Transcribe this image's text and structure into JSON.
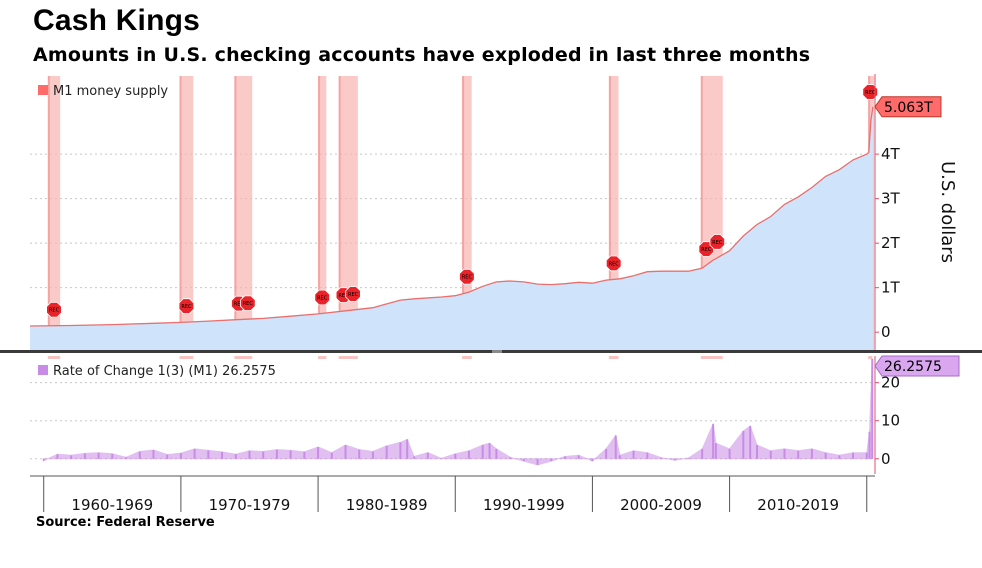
{
  "header": {
    "title": "Cash Kings",
    "subtitle": "Amounts in U.S. checking accounts have exploded in last three months",
    "source": "Source: Federal Reserve"
  },
  "colors": {
    "area_fill": "#cfe3fb",
    "m1_line": "#e8706e",
    "recession_band": "#f8b4b2",
    "recession_marker": "#e8232a",
    "roc_series": "#c98ce6",
    "callout_top": "#ff6b6b",
    "callout_bottom": "#d9a7f0",
    "panel_divider": "#3a3a3a",
    "right_axis": "#e0506a"
  },
  "chart_data": [
    {
      "type": "area",
      "legend": "M1 money supply",
      "ylabel": "U.S. dollars",
      "yticks": [
        "0",
        "1T",
        "2T",
        "3T",
        "4T"
      ],
      "ytick_values": [
        0,
        1,
        2,
        3,
        4
      ],
      "ylim": [
        -0.4,
        5.8
      ],
      "xlim": [
        1959.0,
        2020.6
      ],
      "last_value_label": "5.063T",
      "last_value": 5.063,
      "series": [
        {
          "name": "M1 money supply",
          "x": [
            1959.0,
            1962,
            1965,
            1968,
            1970,
            1972,
            1974,
            1976,
            1978,
            1980,
            1982,
            1984,
            1986,
            1987,
            1989,
            1990,
            1991,
            1992,
            1993,
            1994,
            1995,
            1996,
            1997,
            1998,
            1999,
            2000,
            2001,
            2002,
            2003,
            2004,
            2005,
            2006,
            2007,
            2008,
            2008.8,
            2009,
            2010,
            2011,
            2012,
            2013,
            2014,
            2015,
            2016,
            2017,
            2018,
            2019,
            2020.0,
            2020.15,
            2020.3,
            2020.45
          ],
          "values": [
            0.14,
            0.15,
            0.17,
            0.2,
            0.22,
            0.25,
            0.28,
            0.31,
            0.36,
            0.41,
            0.48,
            0.55,
            0.72,
            0.75,
            0.79,
            0.82,
            0.9,
            1.03,
            1.13,
            1.15,
            1.13,
            1.08,
            1.07,
            1.09,
            1.12,
            1.1,
            1.17,
            1.2,
            1.27,
            1.36,
            1.37,
            1.37,
            1.37,
            1.44,
            1.62,
            1.65,
            1.83,
            2.16,
            2.42,
            2.6,
            2.87,
            3.04,
            3.25,
            3.5,
            3.65,
            3.87,
            4.0,
            4.04,
            4.76,
            5.063
          ]
        }
      ],
      "recessions": [
        {
          "start": 1960.3,
          "end": 1961.2
        },
        {
          "start": 1969.9,
          "end": 1970.9
        },
        {
          "start": 1973.9,
          "end": 1975.2
        },
        {
          "start": 1980.0,
          "end": 1980.6
        },
        {
          "start": 1981.5,
          "end": 1982.9
        },
        {
          "start": 1990.5,
          "end": 1991.2
        },
        {
          "start": 2001.2,
          "end": 2001.9
        },
        {
          "start": 2007.9,
          "end": 2009.5
        },
        {
          "start": 2020.1,
          "end": 2020.4
        }
      ],
      "marker_text": "REC"
    },
    {
      "type": "bar",
      "legend": "Rate of Change 1(3) (M1) 26.2575",
      "yticks": [
        "0",
        "10",
        "20"
      ],
      "ytick_values": [
        0,
        10,
        20
      ],
      "ylim": [
        -4,
        27
      ],
      "last_value_label": "26.2575",
      "last_value": 26.2575,
      "series": [
        {
          "name": "Rate of Change 1(3) (M1)",
          "x": [
            1960,
            1961,
            1962,
            1963,
            1964,
            1965,
            1966,
            1967,
            1968,
            1969,
            1970,
            1971,
            1972,
            1973,
            1974,
            1975,
            1976,
            1977,
            1978,
            1979,
            1980,
            1981,
            1982,
            1983,
            1984,
            1985,
            1986,
            1986.5,
            1987,
            1988,
            1989,
            1990,
            1991,
            1992,
            1992.5,
            1993,
            1994,
            1995,
            1996,
            1997,
            1998,
            1999,
            2000,
            2001,
            2001.7,
            2002,
            2003,
            2004,
            2005,
            2006,
            2007,
            2008,
            2008.8,
            2009,
            2010,
            2011,
            2011.5,
            2012,
            2013,
            2014,
            2015,
            2016,
            2017,
            2018,
            2019,
            2020.0,
            2020.2,
            2020.4
          ],
          "values": [
            -0.5,
            1.2,
            0.9,
            1.4,
            1.6,
            1.3,
            0.4,
            1.9,
            2.3,
            1.1,
            1.5,
            2.6,
            2.2,
            1.8,
            1.2,
            2.1,
            1.9,
            2.4,
            2.2,
            1.8,
            3.1,
            1.6,
            3.6,
            2.4,
            1.9,
            3.4,
            4.3,
            5.1,
            0.6,
            1.6,
            0.1,
            1.3,
            2.1,
            3.6,
            4.1,
            2.6,
            0.4,
            -0.6,
            -1.6,
            -0.6,
            0.6,
            0.9,
            -0.6,
            2.6,
            6.1,
            0.9,
            2.1,
            1.6,
            0.3,
            -0.4,
            0.2,
            2.6,
            9.1,
            4.1,
            2.6,
            7.3,
            8.6,
            3.6,
            2.1,
            2.6,
            2.1,
            2.6,
            1.6,
            0.9,
            1.6,
            1.6,
            7.1,
            26.2575
          ]
        }
      ]
    }
  ],
  "x_axis": {
    "decades": [
      "1960-1969",
      "1970-1979",
      "1980-1989",
      "1990-1999",
      "2000-2009",
      "2010-2019"
    ]
  }
}
